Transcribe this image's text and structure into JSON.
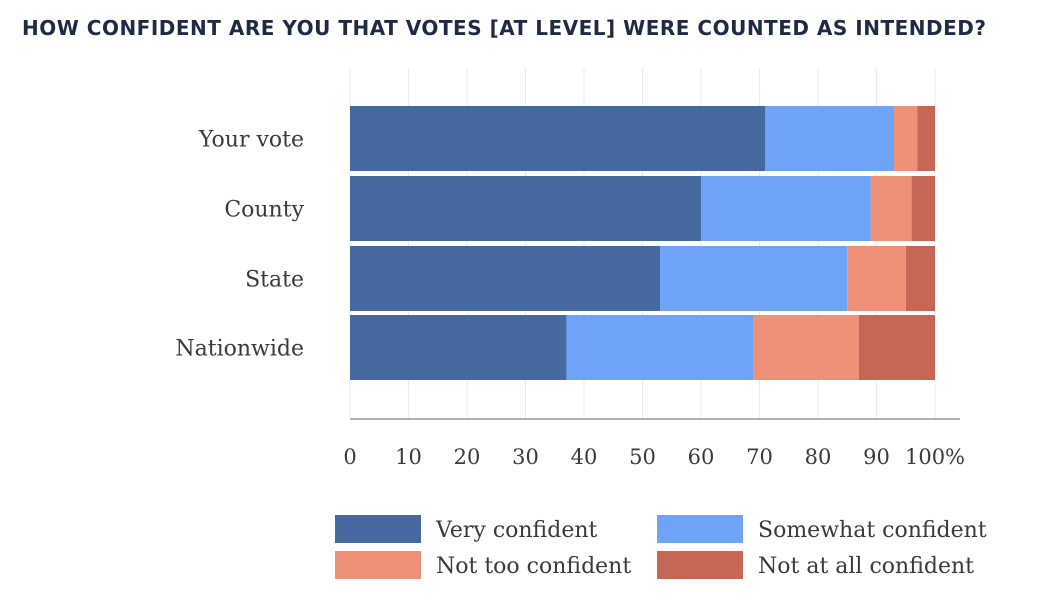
{
  "title": "HOW CONFIDENT ARE YOU THAT VOTES [AT LEVEL] WERE COUNTED AS INTENDED?",
  "chart_data": {
    "type": "bar",
    "orientation": "horizontal",
    "stacked": true,
    "title": "HOW CONFIDENT ARE YOU THAT VOTES [AT LEVEL] WERE COUNTED AS INTENDED?",
    "categories": [
      "Your vote",
      "County",
      "State",
      "Nationwide"
    ],
    "series": [
      {
        "name": "Very confident",
        "color": "#466a9f",
        "values": [
          71,
          60,
          53,
          37
        ]
      },
      {
        "name": "Somewhat confident",
        "color": "#6fa3f7",
        "values": [
          22,
          29,
          32,
          32
        ]
      },
      {
        "name": "Not too confident",
        "color": "#ef9079",
        "values": [
          4,
          7,
          10,
          18
        ]
      },
      {
        "name": "Not at all confident",
        "color": "#c66655",
        "values": [
          3,
          4,
          5,
          13
        ]
      }
    ],
    "xlim": [
      0,
      100
    ],
    "xticks": [
      "0",
      "10",
      "20",
      "30",
      "40",
      "50",
      "60",
      "70",
      "80",
      "90",
      "100%"
    ],
    "grid": true,
    "legend_position": "bottom"
  }
}
